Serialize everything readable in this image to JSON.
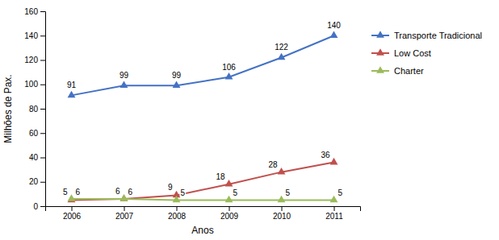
{
  "chart_data": {
    "type": "line",
    "xlabel": "Anos",
    "ylabel": "Milhões de Pax.",
    "x": [
      2006,
      2007,
      2008,
      2009,
      2010,
      2011
    ],
    "xlim": [
      2005.5,
      2011.5
    ],
    "xticks": [
      2006,
      2007,
      2008,
      2009,
      2010,
      2011
    ],
    "ylim": [
      0,
      160
    ],
    "yticks": [
      0,
      20,
      40,
      60,
      80,
      100,
      120,
      140,
      160
    ],
    "grid": false,
    "legend": "right",
    "data_labels": true,
    "marker": "triangle",
    "series": [
      {
        "name": "Transporte Tradicional",
        "color": "#4472C4",
        "values": [
          91,
          99,
          99,
          106,
          122,
          140
        ]
      },
      {
        "name": "Low Cost",
        "color": "#C0504D",
        "values": [
          5,
          6,
          9,
          18,
          28,
          36
        ]
      },
      {
        "name": "Charter",
        "color": "#9BBB59",
        "values": [
          6,
          6,
          5,
          5,
          5,
          5
        ]
      }
    ]
  }
}
